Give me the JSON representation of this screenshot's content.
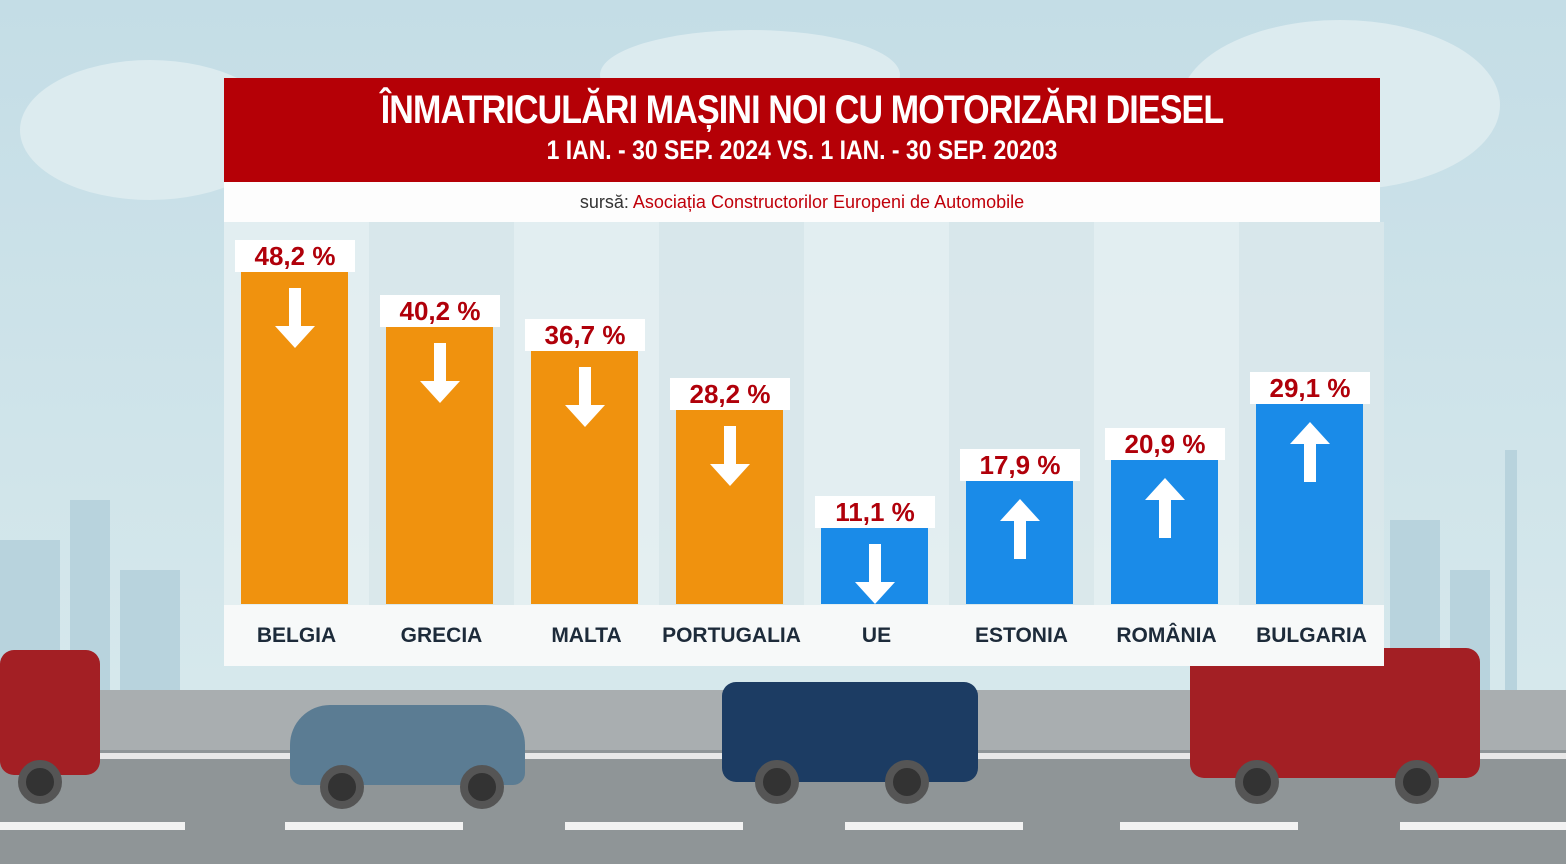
{
  "chart_data": {
    "type": "bar",
    "title": "ÎNMATRICULĂRI MAȘINI NOI CU MOTORIZĂRI DIESEL",
    "subtitle": "1 IAN. - 30 SEP. 2024 VS. 1 IAN. - 30 SEP. 20203",
    "source_prefix": "sursă:",
    "source": "Asociația Constructorilor Europeni de Automobile",
    "categories": [
      "BELGIA",
      "GRECIA",
      "MALTA",
      "PORTUGALIA",
      "UE",
      "ESTONIA",
      "ROMÂNIA",
      "BULGARIA"
    ],
    "values": [
      48.2,
      40.2,
      36.7,
      28.2,
      11.1,
      17.9,
      20.9,
      29.1
    ],
    "labels": [
      "48,2 %",
      "40,2 %",
      "36,7 %",
      "28,2 %",
      "11,1 %",
      "17,9 %",
      "20,9 %",
      "29,1 %"
    ],
    "directions": [
      "down",
      "down",
      "down",
      "down",
      "down",
      "up",
      "up",
      "up"
    ],
    "colors": [
      "#f0920e",
      "#f0920e",
      "#f0920e",
      "#f0920e",
      "#1a8be8",
      "#1a8be8",
      "#1a8be8",
      "#1a8be8"
    ],
    "ylim": [
      0,
      55
    ],
    "grid": false,
    "unit": "%"
  }
}
